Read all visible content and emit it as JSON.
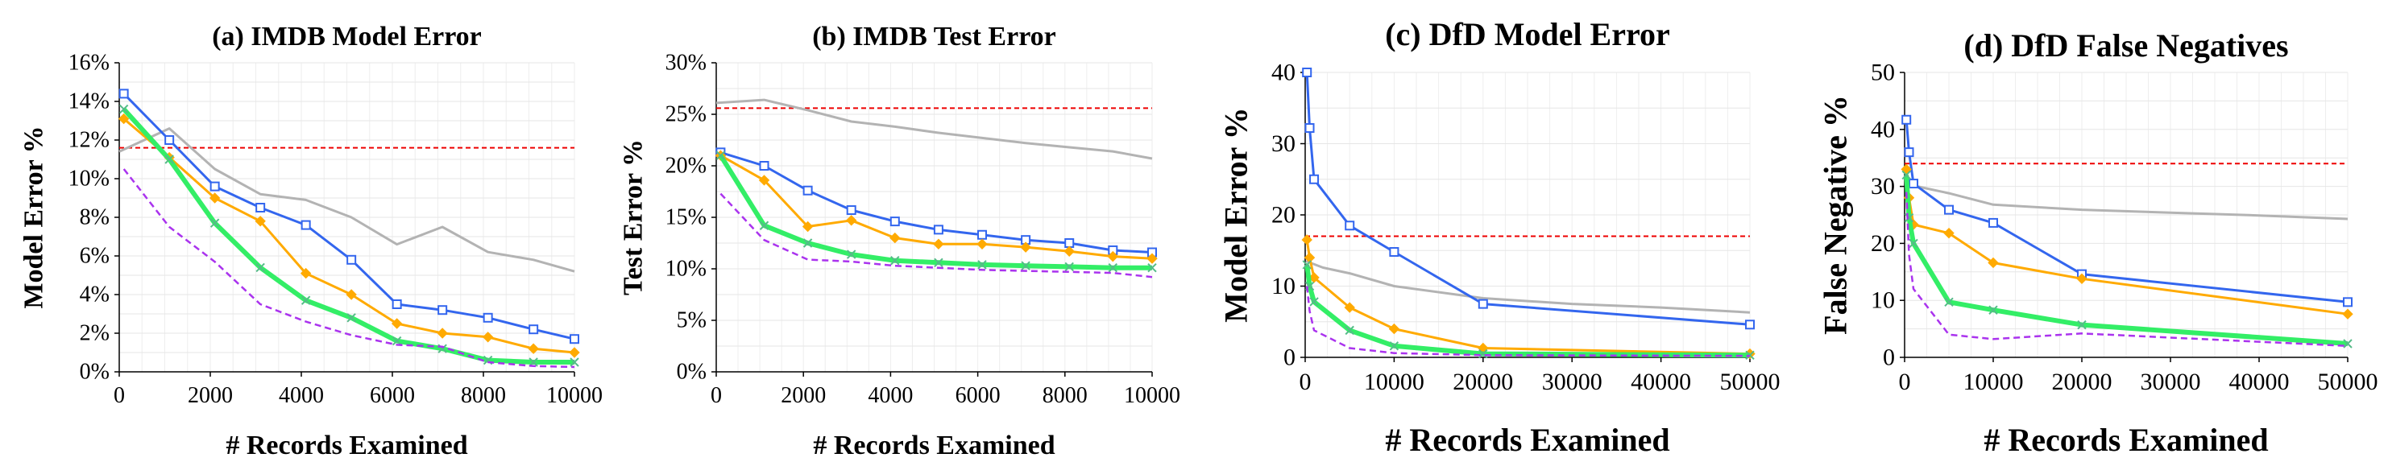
{
  "chart_data": [
    {
      "type": "line",
      "title": "(a) IMDB Model Error",
      "xlabel": "# Records Examined",
      "ylabel": "Model Error %",
      "xlim": [
        0,
        10000
      ],
      "ylim": [
        0,
        16
      ],
      "xticks": [
        "0",
        "2000",
        "4000",
        "6000",
        "8000",
        "10000"
      ],
      "yticks": [
        "0%",
        "2%",
        "4%",
        "6%",
        "8%",
        "10%",
        "12%",
        "14%",
        "16%"
      ],
      "yfmt": "pct",
      "grid": true,
      "series": [
        {
          "color": "#b3b3b3",
          "style": "solid",
          "width": 3,
          "marker": "none",
          "x": [
            0,
            1100,
            2100,
            3100,
            4100,
            5100,
            6100,
            7100,
            8100,
            9100,
            10000
          ],
          "y": [
            11.4,
            12.6,
            10.5,
            9.2,
            8.9,
            8.0,
            6.6,
            7.5,
            6.2,
            5.8,
            5.2
          ]
        },
        {
          "color": "#3366ee",
          "style": "solid",
          "width": 3,
          "marker": "square",
          "x": [
            100,
            1100,
            2100,
            3100,
            4100,
            5100,
            6100,
            7100,
            8100,
            9100,
            10000
          ],
          "y": [
            14.4,
            12.0,
            9.6,
            8.5,
            7.6,
            5.8,
            3.5,
            3.2,
            2.8,
            2.2,
            1.7
          ]
        },
        {
          "color": "#ffaa00",
          "style": "solid",
          "width": 3,
          "marker": "diamond",
          "x": [
            100,
            1100,
            2100,
            3100,
            4100,
            5100,
            6100,
            7100,
            8100,
            9100,
            10000
          ],
          "y": [
            13.1,
            11.1,
            9.0,
            7.8,
            5.1,
            4.0,
            2.5,
            2.0,
            1.8,
            1.2,
            1.0
          ]
        },
        {
          "color": "#33ee66",
          "style": "solid",
          "width": 6,
          "marker": "cross",
          "x": [
            100,
            1100,
            2100,
            3100,
            4100,
            5100,
            6100,
            7100,
            8100,
            9100,
            10000
          ],
          "y": [
            13.6,
            11.0,
            7.7,
            5.4,
            3.7,
            2.8,
            1.6,
            1.2,
            0.6,
            0.5,
            0.5
          ]
        },
        {
          "color": "#aa33ee",
          "style": "dashed",
          "width": 2.5,
          "marker": "none",
          "x": [
            100,
            1100,
            2100,
            3100,
            4100,
            5100,
            6100,
            7100,
            8100,
            9100,
            10000
          ],
          "y": [
            10.5,
            7.5,
            5.7,
            3.5,
            2.6,
            1.9,
            1.4,
            1.3,
            0.5,
            0.3,
            0.25
          ]
        }
      ],
      "reference_line": {
        "y": 11.6,
        "color": "#ee0000",
        "style": "dashed"
      }
    },
    {
      "type": "line",
      "title": "(b) IMDB Test Error",
      "xlabel": "# Records Examined",
      "ylabel": "Test Error %",
      "xlim": [
        0,
        10000
      ],
      "ylim": [
        0,
        30
      ],
      "xticks": [
        "0",
        "2000",
        "4000",
        "6000",
        "8000",
        "10000"
      ],
      "yticks": [
        "0%",
        "5%",
        "10%",
        "15%",
        "20%",
        "25%",
        "30%"
      ],
      "yfmt": "pct",
      "grid": true,
      "series": [
        {
          "color": "#b3b3b3",
          "style": "solid",
          "width": 3,
          "marker": "none",
          "x": [
            0,
            1100,
            2100,
            3100,
            4100,
            5100,
            6100,
            7100,
            8100,
            9100,
            10000
          ],
          "y": [
            26.1,
            26.4,
            25.4,
            24.3,
            23.8,
            23.2,
            22.7,
            22.2,
            21.8,
            21.4,
            20.7
          ]
        },
        {
          "color": "#3366ee",
          "style": "solid",
          "width": 3,
          "marker": "square",
          "x": [
            100,
            1100,
            2100,
            3100,
            4100,
            5100,
            6100,
            7100,
            8100,
            9100,
            10000
          ],
          "y": [
            21.3,
            20.0,
            17.6,
            15.7,
            14.6,
            13.8,
            13.3,
            12.8,
            12.5,
            11.8,
            11.6
          ]
        },
        {
          "color": "#ffaa00",
          "style": "solid",
          "width": 3,
          "marker": "diamond",
          "x": [
            100,
            1100,
            2100,
            3100,
            4100,
            5100,
            6100,
            7100,
            8100,
            9100,
            10000
          ],
          "y": [
            21.0,
            18.6,
            14.1,
            14.7,
            13.0,
            12.4,
            12.4,
            12.1,
            11.7,
            11.2,
            11.0
          ]
        },
        {
          "color": "#33ee66",
          "style": "solid",
          "width": 6,
          "marker": "cross",
          "x": [
            100,
            1100,
            2100,
            3100,
            4100,
            5100,
            6100,
            7100,
            8100,
            9100,
            10000
          ],
          "y": [
            21.0,
            14.2,
            12.5,
            11.4,
            10.8,
            10.6,
            10.4,
            10.3,
            10.2,
            10.1,
            10.1
          ]
        },
        {
          "color": "#aa33ee",
          "style": "dashed",
          "width": 2.5,
          "marker": "none",
          "x": [
            100,
            1100,
            2100,
            3100,
            4100,
            5100,
            6100,
            7100,
            8100,
            9100,
            10000
          ],
          "y": [
            17.3,
            12.8,
            10.9,
            10.7,
            10.3,
            10.1,
            9.9,
            9.8,
            9.7,
            9.6,
            9.2
          ]
        }
      ],
      "reference_line": {
        "y": 25.6,
        "color": "#ee0000",
        "style": "dashed"
      }
    },
    {
      "type": "line",
      "title": "(c) DfD Model Error",
      "xlabel": "# Records Examined",
      "ylabel": "Model Error %",
      "xlim": [
        0,
        50000
      ],
      "ylim": [
        0,
        40
      ],
      "xticks": [
        "0",
        "10000",
        "20000",
        "30000",
        "40000",
        "50000"
      ],
      "yticks": [
        "0",
        "10",
        "20",
        "30",
        "40"
      ],
      "yfmt": "num",
      "grid": true,
      "series": [
        {
          "color": "#b3b3b3",
          "style": "solid",
          "width": 3,
          "marker": "none",
          "x": [
            100,
            2000,
            5000,
            10000,
            20000,
            30000,
            40000,
            50000
          ],
          "y": [
            13.5,
            12.6,
            11.8,
            10.0,
            8.3,
            7.5,
            7.0,
            6.3
          ]
        },
        {
          "color": "#3366ee",
          "style": "solid",
          "width": 3,
          "marker": "square",
          "x": [
            200,
            500,
            1000,
            5000,
            10000,
            20000,
            50000
          ],
          "y": [
            40.0,
            32.2,
            25.0,
            18.5,
            14.8,
            7.5,
            4.6
          ]
        },
        {
          "color": "#ffaa00",
          "style": "solid",
          "width": 3,
          "marker": "diamond",
          "x": [
            200,
            500,
            1000,
            5000,
            10000,
            20000,
            50000
          ],
          "y": [
            16.5,
            14.0,
            11.2,
            7.0,
            4.0,
            1.3,
            0.5
          ]
        },
        {
          "color": "#33ee66",
          "style": "solid",
          "width": 6,
          "marker": "cross",
          "x": [
            200,
            500,
            1000,
            5000,
            10000,
            20000,
            50000
          ],
          "y": [
            13.0,
            10.0,
            7.8,
            3.8,
            1.6,
            0.5,
            0.3
          ]
        },
        {
          "color": "#aa33ee",
          "style": "dashed",
          "width": 2.5,
          "marker": "none",
          "x": [
            200,
            500,
            1000,
            5000,
            10000,
            20000,
            50000
          ],
          "y": [
            10.0,
            6.5,
            3.8,
            1.3,
            0.6,
            0.3,
            0.2
          ]
        }
      ],
      "reference_line": {
        "y": 17.0,
        "color": "#ee0000",
        "style": "dashed"
      }
    },
    {
      "type": "line",
      "title": "(d) DfD False Negatives",
      "xlabel": "# Records Examined",
      "ylabel": "False Negative %",
      "xlim": [
        0,
        50000
      ],
      "ylim": [
        0,
        50
      ],
      "xticks": [
        "0",
        "10000",
        "20000",
        "30000",
        "40000",
        "50000"
      ],
      "yticks": [
        "0",
        "10",
        "20",
        "30",
        "40",
        "50"
      ],
      "yfmt": "num",
      "grid": true,
      "series": [
        {
          "color": "#b3b3b3",
          "style": "solid",
          "width": 3,
          "marker": "none",
          "x": [
            100,
            2000,
            5000,
            10000,
            20000,
            30000,
            40000,
            50000
          ],
          "y": [
            30.5,
            29.8,
            28.8,
            26.8,
            25.9,
            25.4,
            24.9,
            24.3
          ]
        },
        {
          "color": "#3366ee",
          "style": "solid",
          "width": 3,
          "marker": "square",
          "x": [
            200,
            500,
            1000,
            5000,
            10000,
            20000,
            50000
          ],
          "y": [
            41.7,
            36.0,
            30.5,
            25.9,
            23.6,
            14.6,
            9.7
          ]
        },
        {
          "color": "#ffaa00",
          "style": "solid",
          "width": 3,
          "marker": "diamond",
          "x": [
            200,
            500,
            1000,
            5000,
            10000,
            20000,
            50000
          ],
          "y": [
            33.0,
            28.0,
            23.3,
            21.8,
            16.6,
            13.8,
            7.6
          ]
        },
        {
          "color": "#33ee66",
          "style": "solid",
          "width": 6,
          "marker": "cross",
          "x": [
            200,
            500,
            1000,
            5000,
            10000,
            20000,
            50000
          ],
          "y": [
            32.0,
            24.5,
            20.0,
            9.7,
            8.3,
            5.7,
            2.4
          ]
        },
        {
          "color": "#aa33ee",
          "style": "dashed",
          "width": 2.5,
          "marker": "none",
          "x": [
            200,
            500,
            1000,
            5000,
            10000,
            20000,
            50000
          ],
          "y": [
            29.0,
            18.0,
            12.0,
            4.0,
            3.2,
            4.2,
            2.0
          ]
        }
      ],
      "reference_line": {
        "y": 34.0,
        "color": "#ee0000",
        "style": "dashed"
      }
    }
  ]
}
